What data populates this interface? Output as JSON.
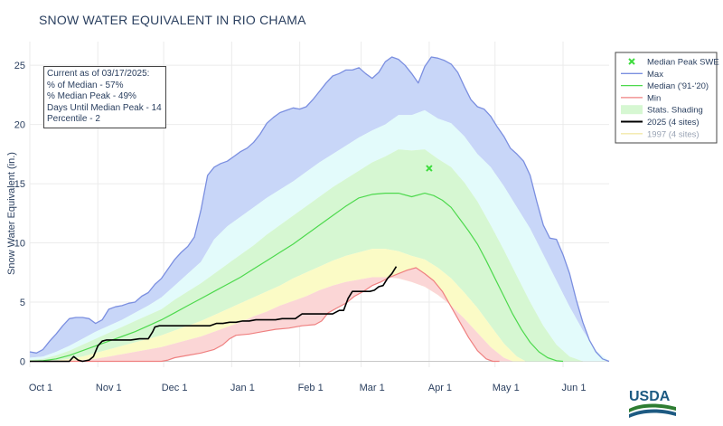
{
  "title": "SNOW WATER EQUIVALENT IN RIO CHAMA",
  "info_box": {
    "lines": [
      "Current as of 03/17/2025:",
      "% of Median - 57%",
      "% Median Peak - 49%",
      "Days Until Median Peak - 14",
      "Percentile - 2"
    ]
  },
  "logo_text": "USDA",
  "colors": {
    "max": "#7b8fe0",
    "median": "#4dd94d",
    "min": "#ef8080",
    "current": "#000000",
    "y1997": "#f3e8a8",
    "band_max": "#c8d6f8",
    "band_90": "#e3fbfb",
    "band_70": "#d6f7d2",
    "band_30": "#fbfbc6",
    "band_10": "#fbd6d6",
    "median_peak": "#3ddc3d"
  },
  "chart_data": {
    "type": "area",
    "title": "SNOW WATER EQUIVALENT IN RIO CHAMA",
    "ylabel": "Snow Water Equivalent (in.)",
    "xlabel": "",
    "x_unit": "days since Oct 1",
    "xlim": [
      0,
      264
    ],
    "ylim": [
      -0.5,
      27
    ],
    "y_ticks": [
      0,
      5,
      10,
      15,
      20,
      25
    ],
    "x_ticks": [
      {
        "label": "Oct 1",
        "day": 0
      },
      {
        "label": "Nov 1",
        "day": 31
      },
      {
        "label": "Dec 1",
        "day": 61
      },
      {
        "label": "Jan 1",
        "day": 92
      },
      {
        "label": "Feb 1",
        "day": 123
      },
      {
        "label": "Mar 1",
        "day": 151
      },
      {
        "label": "Apr 1",
        "day": 182
      },
      {
        "label": "May 1",
        "day": 212
      },
      {
        "label": "Jun 1",
        "day": 243
      }
    ],
    "grid": true,
    "legend_position": "right",
    "legend": [
      {
        "label": "Median Peak SWE",
        "kind": "marker",
        "key": "median_peak"
      },
      {
        "label": "Max",
        "kind": "line",
        "key": "max"
      },
      {
        "label": "Median ('91-'20)",
        "kind": "line",
        "key": "median"
      },
      {
        "label": "Min",
        "kind": "line",
        "key": "min"
      },
      {
        "label": "Stats. Shading",
        "kind": "band",
        "key": "band_70"
      },
      {
        "label": "2025 (4 sites)",
        "kind": "line",
        "key": "current",
        "bold": true
      },
      {
        "label": "1997 (4 sites)",
        "kind": "line",
        "key": "y1997",
        "muted": true
      }
    ],
    "median_peak": {
      "day": 182,
      "value": 16.3
    },
    "series": {
      "max": {
        "x": [
          0,
          3,
          6,
          9,
          12,
          15,
          18,
          21,
          24,
          27,
          30,
          33,
          36,
          39,
          42,
          45,
          48,
          51,
          54,
          57,
          60,
          63,
          66,
          69,
          72,
          75,
          78,
          81,
          84,
          87,
          90,
          93,
          96,
          99,
          102,
          105,
          108,
          111,
          114,
          117,
          120,
          123,
          126,
          129,
          132,
          135,
          138,
          141,
          144,
          147,
          150,
          153,
          156,
          159,
          162,
          165,
          168,
          171,
          174,
          177,
          180,
          183,
          186,
          189,
          192,
          195,
          198,
          201,
          204,
          207,
          210,
          213,
          216,
          219,
          222,
          225,
          228,
          231,
          234,
          237,
          240,
          243,
          246,
          249,
          252,
          255,
          258,
          261,
          264
        ],
        "y": [
          0.8,
          0.7,
          1.0,
          1.7,
          2.3,
          3.0,
          3.6,
          3.7,
          3.7,
          3.6,
          3.2,
          3.5,
          4.4,
          4.6,
          4.7,
          4.9,
          5.0,
          5.5,
          5.8,
          6.5,
          7.0,
          7.8,
          8.6,
          9.2,
          9.7,
          10.5,
          12.8,
          15.7,
          16.4,
          16.7,
          16.9,
          17.3,
          17.7,
          18.0,
          18.5,
          19.2,
          20.1,
          20.6,
          21.0,
          21.2,
          21.4,
          21.3,
          21.5,
          22.1,
          22.8,
          23.5,
          24.1,
          24.3,
          24.6,
          24.6,
          24.8,
          24.3,
          23.9,
          24.4,
          25.3,
          25.7,
          25.5,
          25.0,
          24.3,
          23.5,
          24.9,
          25.7,
          25.6,
          25.4,
          25.1,
          24.4,
          23.2,
          22.1,
          21.5,
          21.3,
          20.7,
          19.8,
          19.0,
          18.0,
          17.5,
          16.9,
          15.7,
          13.5,
          11.5,
          10.4,
          10.3,
          9.0,
          7.4,
          5.2,
          3.3,
          1.8,
          0.8,
          0.2,
          0.0
        ]
      },
      "p90": {
        "x": [
          0,
          6,
          12,
          18,
          24,
          30,
          36,
          42,
          48,
          54,
          60,
          66,
          72,
          78,
          84,
          90,
          96,
          102,
          108,
          114,
          120,
          126,
          132,
          138,
          144,
          150,
          156,
          162,
          168,
          174,
          180,
          186,
          192,
          198,
          204,
          210,
          216,
          222,
          228,
          234,
          240,
          246,
          252,
          258,
          264
        ],
        "y": [
          0.3,
          0.4,
          0.8,
          1.3,
          1.9,
          2.5,
          3.0,
          3.5,
          4.1,
          4.7,
          5.4,
          6.4,
          7.4,
          8.4,
          10.3,
          11.4,
          12.2,
          13.0,
          13.8,
          14.5,
          15.2,
          16.0,
          16.8,
          17.5,
          18.2,
          18.9,
          19.5,
          20.0,
          20.8,
          20.8,
          21.2,
          20.5,
          20.1,
          19.0,
          17.5,
          16.4,
          14.8,
          13.0,
          11.2,
          9.0,
          6.8,
          4.6,
          2.6,
          0.9,
          0.0
        ]
      },
      "p70": {
        "x": [
          0,
          6,
          12,
          18,
          24,
          30,
          36,
          42,
          48,
          54,
          60,
          66,
          72,
          78,
          84,
          90,
          96,
          102,
          108,
          114,
          120,
          126,
          132,
          138,
          144,
          150,
          156,
          162,
          168,
          174,
          180,
          186,
          192,
          198,
          204,
          210,
          216,
          222,
          228,
          234,
          240,
          246,
          252
        ],
        "y": [
          0.1,
          0.2,
          0.5,
          0.9,
          1.4,
          1.9,
          2.4,
          2.9,
          3.4,
          3.9,
          4.4,
          5.2,
          5.9,
          6.6,
          7.4,
          8.2,
          9.0,
          9.8,
          10.7,
          11.5,
          12.3,
          13.1,
          13.9,
          14.7,
          15.4,
          16.1,
          16.8,
          17.3,
          17.9,
          17.8,
          17.9,
          17.1,
          16.4,
          15.1,
          13.5,
          11.5,
          9.4,
          7.2,
          5.0,
          3.0,
          1.4,
          0.4,
          0.0
        ]
      },
      "median": {
        "x": [
          0,
          6,
          12,
          18,
          24,
          30,
          36,
          42,
          48,
          54,
          60,
          66,
          72,
          78,
          84,
          90,
          96,
          102,
          108,
          114,
          120,
          126,
          132,
          138,
          144,
          150,
          156,
          162,
          168,
          174,
          180,
          184,
          188,
          192,
          196,
          200,
          204,
          208,
          212,
          216,
          220,
          224,
          228,
          232,
          236,
          240,
          243
        ],
        "y": [
          0.0,
          0.05,
          0.2,
          0.5,
          0.9,
          1.3,
          1.7,
          2.1,
          2.5,
          3.0,
          3.5,
          4.1,
          4.7,
          5.3,
          5.9,
          6.5,
          7.1,
          7.8,
          8.5,
          9.2,
          9.9,
          10.7,
          11.5,
          12.3,
          13.1,
          13.8,
          14.1,
          14.2,
          14.2,
          13.9,
          14.2,
          14.0,
          13.6,
          13.0,
          12.0,
          11.0,
          9.9,
          8.5,
          7.0,
          5.5,
          4.0,
          2.7,
          1.6,
          0.8,
          0.3,
          0.05,
          0.0
        ]
      },
      "p30": {
        "x": [
          0,
          6,
          12,
          18,
          24,
          30,
          36,
          42,
          48,
          54,
          60,
          66,
          72,
          78,
          84,
          90,
          96,
          102,
          108,
          114,
          120,
          126,
          132,
          138,
          144,
          150,
          156,
          162,
          168,
          174,
          180,
          186,
          192,
          198,
          204,
          210,
          216,
          222,
          226
        ],
        "y": [
          0.0,
          0.0,
          0.05,
          0.2,
          0.4,
          0.7,
          1.0,
          1.3,
          1.6,
          1.9,
          2.2,
          2.6,
          3.0,
          3.4,
          3.9,
          4.4,
          4.9,
          5.4,
          5.9,
          6.4,
          7.0,
          7.5,
          8.0,
          8.5,
          8.9,
          9.2,
          9.5,
          9.5,
          9.3,
          8.9,
          8.6,
          7.9,
          7.0,
          5.8,
          4.5,
          3.0,
          1.5,
          0.4,
          0.0
        ]
      },
      "p10": {
        "x": [
          0,
          12,
          18,
          24,
          30,
          36,
          42,
          48,
          54,
          60,
          66,
          72,
          78,
          84,
          90,
          96,
          102,
          108,
          114,
          120,
          126,
          132,
          138,
          144,
          150,
          156,
          162,
          168,
          174,
          180,
          186,
          192,
          198,
          204,
          210,
          216,
          220
        ],
        "y": [
          0.0,
          0.0,
          0.05,
          0.1,
          0.2,
          0.4,
          0.6,
          0.8,
          1.0,
          1.2,
          1.5,
          1.8,
          2.1,
          2.5,
          2.9,
          3.3,
          3.8,
          4.2,
          4.7,
          5.1,
          5.5,
          6.0,
          6.4,
          6.7,
          6.9,
          7.1,
          7.1,
          7.0,
          6.7,
          6.3,
          5.6,
          4.7,
          3.6,
          2.4,
          1.2,
          0.3,
          0.0
        ]
      },
      "min": {
        "x": [
          0,
          60,
          63,
          66,
          72,
          78,
          84,
          88,
          91,
          94,
          100,
          106,
          112,
          118,
          124,
          130,
          133,
          136,
          140,
          144,
          148,
          152,
          156,
          160,
          164,
          168,
          172,
          176,
          180,
          184,
          188,
          192,
          196,
          200,
          204,
          208,
          211,
          214
        ],
        "y": [
          0.0,
          0.0,
          0.1,
          0.3,
          0.5,
          0.7,
          1.0,
          1.4,
          1.9,
          2.2,
          2.3,
          2.5,
          2.7,
          2.8,
          3.0,
          3.1,
          3.4,
          4.1,
          4.5,
          4.9,
          5.5,
          5.9,
          6.4,
          6.7,
          7.1,
          7.4,
          7.7,
          7.9,
          7.4,
          6.8,
          5.9,
          4.6,
          3.3,
          2.0,
          0.9,
          0.2,
          0.0,
          0.0
        ]
      },
      "current": {
        "x": [
          0,
          18,
          20,
          22,
          24,
          27,
          29,
          31,
          33,
          35,
          37,
          40,
          43,
          46,
          50,
          54,
          56,
          57,
          59,
          61,
          64,
          67,
          70,
          73,
          76,
          79,
          82,
          85,
          88,
          91,
          94,
          97,
          100,
          103,
          106,
          109,
          112,
          115,
          118,
          121,
          124,
          127,
          129,
          132,
          135,
          138,
          141,
          143,
          145,
          147,
          149,
          151,
          153,
          155,
          157,
          159,
          161,
          163,
          165,
          167
        ],
        "y": [
          0.0,
          0.0,
          0.4,
          0.1,
          0.0,
          0.1,
          0.4,
          1.3,
          1.7,
          1.8,
          1.8,
          1.8,
          1.8,
          1.8,
          1.9,
          1.9,
          2.5,
          2.9,
          3.0,
          3.0,
          3.0,
          3.0,
          3.0,
          3.0,
          3.0,
          3.0,
          3.0,
          3.2,
          3.2,
          3.3,
          3.3,
          3.4,
          3.4,
          3.5,
          3.5,
          3.5,
          3.5,
          3.6,
          3.6,
          3.6,
          4.0,
          4.0,
          4.0,
          4.0,
          4.0,
          4.0,
          4.3,
          4.3,
          5.3,
          5.9,
          5.9,
          5.9,
          5.9,
          5.9,
          6.0,
          6.3,
          6.4,
          7.0,
          7.4,
          8.0
        ]
      }
    }
  }
}
